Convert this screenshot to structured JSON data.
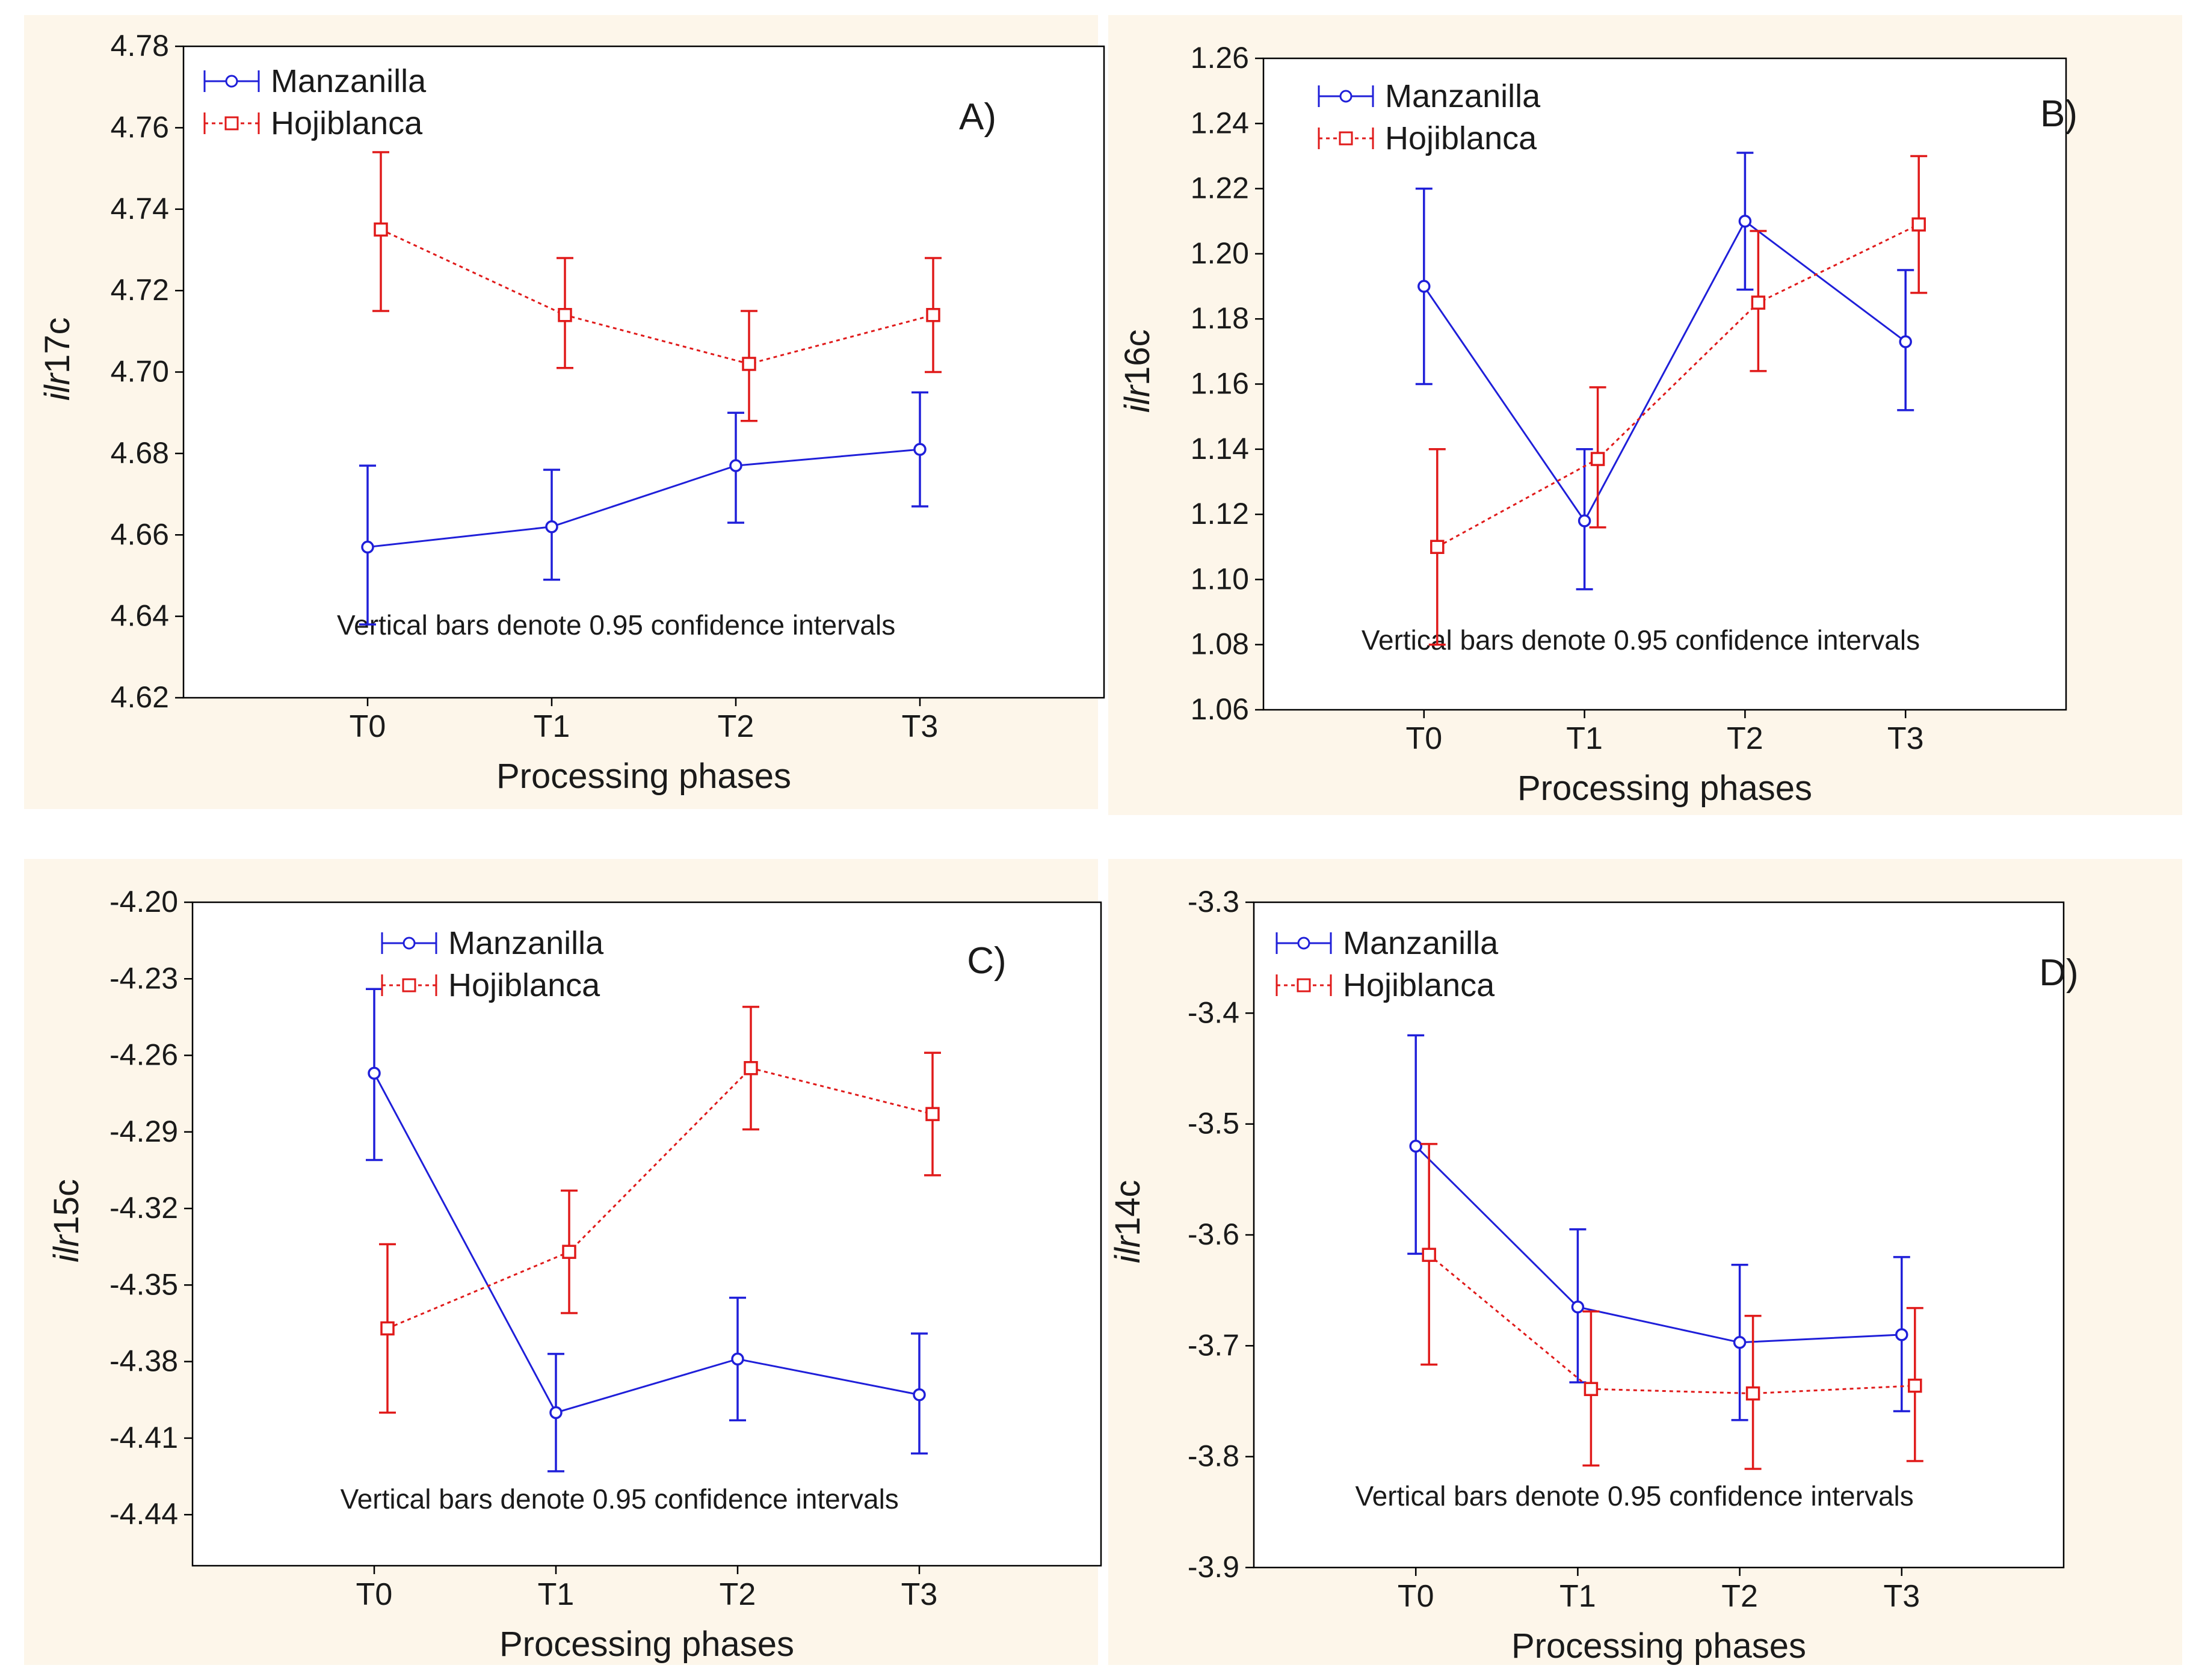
{
  "chart_data": [
    {
      "type": "line",
      "panel_label": "A)",
      "xlabel": "Processing phases",
      "ylabel_italic": "ilr",
      "ylabel_rest": "17c",
      "categories": [
        "T0",
        "T1",
        "T2",
        "T3"
      ],
      "ylim": [
        4.62,
        4.78
      ],
      "yticks": [
        "4.62",
        "4.64",
        "4.66",
        "4.68",
        "4.70",
        "4.72",
        "4.74",
        "4.76",
        "4.78"
      ],
      "note": "Vertical bars denote 0.95 confidence intervals",
      "series": [
        {
          "name": "Manzanilla",
          "color": "#1f1fd9",
          "marker": "circle",
          "dashed": false,
          "values": [
            4.657,
            4.662,
            4.677,
            4.681
          ],
          "lower": [
            4.638,
            4.649,
            4.663,
            4.667
          ],
          "upper": [
            4.677,
            4.676,
            4.69,
            4.695
          ]
        },
        {
          "name": "Hojiblanca",
          "color": "#e01a1a",
          "marker": "square",
          "dashed": true,
          "values": [
            4.735,
            4.714,
            4.702,
            4.714
          ],
          "lower": [
            4.715,
            4.701,
            4.688,
            4.7
          ],
          "upper": [
            4.754,
            4.728,
            4.715,
            4.728
          ]
        }
      ]
    },
    {
      "type": "line",
      "panel_label": "B)",
      "xlabel": "Processing phases",
      "ylabel_italic": "ilr",
      "ylabel_rest": "16c",
      "categories": [
        "T0",
        "T1",
        "T2",
        "T3"
      ],
      "ylim": [
        1.06,
        1.26
      ],
      "yticks": [
        "1.06",
        "1.08",
        "1.10",
        "1.12",
        "1.14",
        "1.16",
        "1.18",
        "1.20",
        "1.22",
        "1.24",
        "1.26"
      ],
      "note": "Vertical bars denote 0.95 confidence intervals",
      "series": [
        {
          "name": "Manzanilla",
          "color": "#1f1fd9",
          "marker": "circle",
          "dashed": false,
          "values": [
            1.19,
            1.118,
            1.21,
            1.173
          ],
          "lower": [
            1.16,
            1.097,
            1.189,
            1.152
          ],
          "upper": [
            1.22,
            1.14,
            1.231,
            1.195
          ]
        },
        {
          "name": "Hojiblanca",
          "color": "#e01a1a",
          "marker": "square",
          "dashed": true,
          "values": [
            1.11,
            1.137,
            1.185,
            1.209
          ],
          "lower": [
            1.08,
            1.116,
            1.164,
            1.188
          ],
          "upper": [
            1.14,
            1.159,
            1.207,
            1.23
          ]
        }
      ]
    },
    {
      "type": "line",
      "panel_label": "C)",
      "xlabel": "Processing phases",
      "ylabel_italic": "ilr",
      "ylabel_rest": "15c",
      "categories": [
        "T0",
        "T1",
        "T2",
        "T3"
      ],
      "ylim": [
        -4.46,
        -4.2
      ],
      "yticks": [
        "-4.44",
        "-4.41",
        "-4.38",
        "-4.35",
        "-4.32",
        "-4.29",
        "-4.26",
        "-4.23",
        "-4.20"
      ],
      "ytick_values": [
        -4.44,
        -4.41,
        -4.38,
        -4.35,
        -4.32,
        -4.29,
        -4.26,
        -4.23,
        -4.2
      ],
      "note": "Vertical bars denote 0.95 confidence intervals",
      "series": [
        {
          "name": "Manzanilla",
          "color": "#1f1fd9",
          "marker": "circle",
          "dashed": false,
          "values": [
            -4.267,
            -4.4,
            -4.379,
            -4.393
          ],
          "lower": [
            -4.301,
            -4.423,
            -4.403,
            -4.416
          ],
          "upper": [
            -4.234,
            -4.377,
            -4.355,
            -4.369
          ]
        },
        {
          "name": "Hojiblanca",
          "color": "#e01a1a",
          "marker": "square",
          "dashed": true,
          "values": [
            -4.367,
            -4.337,
            -4.265,
            -4.283
          ],
          "lower": [
            -4.4,
            -4.361,
            -4.289,
            -4.307
          ],
          "upper": [
            -4.334,
            -4.313,
            -4.241,
            -4.259
          ]
        }
      ]
    },
    {
      "type": "line",
      "panel_label": "D)",
      "xlabel": "Processing phases",
      "ylabel_italic": "ilr",
      "ylabel_rest": "14c",
      "categories": [
        "T0",
        "T1",
        "T2",
        "T3"
      ],
      "ylim": [
        -3.9,
        -3.3
      ],
      "yticks": [
        "-3.9",
        "-3.8",
        "-3.7",
        "-3.6",
        "-3.5",
        "-3.4",
        "-3.3"
      ],
      "note": "Vertical bars denote 0.95 confidence intervals",
      "series": [
        {
          "name": "Manzanilla",
          "color": "#1f1fd9",
          "marker": "circle",
          "dashed": false,
          "values": [
            -3.52,
            -3.665,
            -3.697,
            -3.69
          ],
          "lower": [
            -3.617,
            -3.733,
            -3.767,
            -3.759
          ],
          "upper": [
            -3.42,
            -3.595,
            -3.627,
            -3.62
          ]
        },
        {
          "name": "Hojiblanca",
          "color": "#e01a1a",
          "marker": "square",
          "dashed": true,
          "values": [
            -3.618,
            -3.739,
            -3.743,
            -3.736
          ],
          "lower": [
            -3.717,
            -3.808,
            -3.811,
            -3.804
          ],
          "upper": [
            -3.518,
            -3.669,
            -3.673,
            -3.666
          ]
        }
      ]
    }
  ]
}
